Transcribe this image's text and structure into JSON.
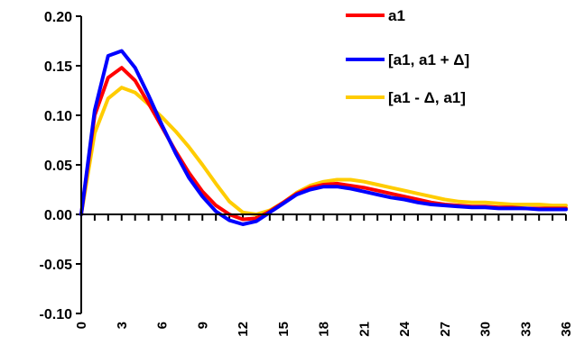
{
  "chart_data": {
    "type": "line",
    "title": "",
    "xlabel": "",
    "ylabel": "",
    "x": [
      0,
      1,
      2,
      3,
      4,
      5,
      6,
      7,
      8,
      9,
      10,
      11,
      12,
      13,
      14,
      15,
      16,
      17,
      18,
      19,
      20,
      21,
      22,
      23,
      24,
      25,
      26,
      27,
      28,
      29,
      30,
      31,
      32,
      33,
      34,
      35,
      36
    ],
    "xticks": [
      "0",
      "3",
      "6",
      "9",
      "12",
      "15",
      "18",
      "21",
      "24",
      "27",
      "30",
      "33",
      "36"
    ],
    "yticks": [
      "0.20",
      "0.15",
      "0.10",
      "0.05",
      "0.00",
      "-0.05",
      "-0.10"
    ],
    "ylim": [
      -0.1,
      0.2
    ],
    "xlim": [
      0,
      36
    ],
    "grid": false,
    "legend_position": "top-right",
    "series": [
      {
        "name": "a1",
        "color": "#ff0000",
        "values": [
          0.0,
          0.1,
          0.138,
          0.148,
          0.135,
          0.112,
          0.088,
          0.064,
          0.042,
          0.023,
          0.009,
          0.0,
          -0.005,
          -0.004,
          0.003,
          0.012,
          0.021,
          0.027,
          0.03,
          0.031,
          0.029,
          0.027,
          0.024,
          0.021,
          0.018,
          0.015,
          0.012,
          0.01,
          0.009,
          0.008,
          0.008,
          0.007,
          0.007,
          0.006,
          0.006,
          0.006,
          0.006
        ]
      },
      {
        "name": "[a1, a1 + Δ]",
        "color": "#0000ff",
        "values": [
          0.0,
          0.105,
          0.16,
          0.165,
          0.148,
          0.12,
          0.09,
          0.062,
          0.037,
          0.018,
          0.003,
          -0.006,
          -0.01,
          -0.007,
          0.002,
          0.011,
          0.02,
          0.025,
          0.028,
          0.028,
          0.026,
          0.023,
          0.02,
          0.017,
          0.015,
          0.012,
          0.01,
          0.009,
          0.008,
          0.007,
          0.007,
          0.006,
          0.006,
          0.006,
          0.005,
          0.005,
          0.005
        ]
      },
      {
        "name": "[a1 - Δ, a1]",
        "color": "#ffcc00",
        "values": [
          0.0,
          0.082,
          0.117,
          0.128,
          0.123,
          0.111,
          0.098,
          0.084,
          0.068,
          0.05,
          0.031,
          0.013,
          0.002,
          0.0,
          0.004,
          0.012,
          0.022,
          0.029,
          0.033,
          0.035,
          0.035,
          0.033,
          0.03,
          0.027,
          0.024,
          0.021,
          0.018,
          0.015,
          0.013,
          0.012,
          0.012,
          0.011,
          0.01,
          0.01,
          0.01,
          0.009,
          0.009
        ]
      }
    ]
  }
}
